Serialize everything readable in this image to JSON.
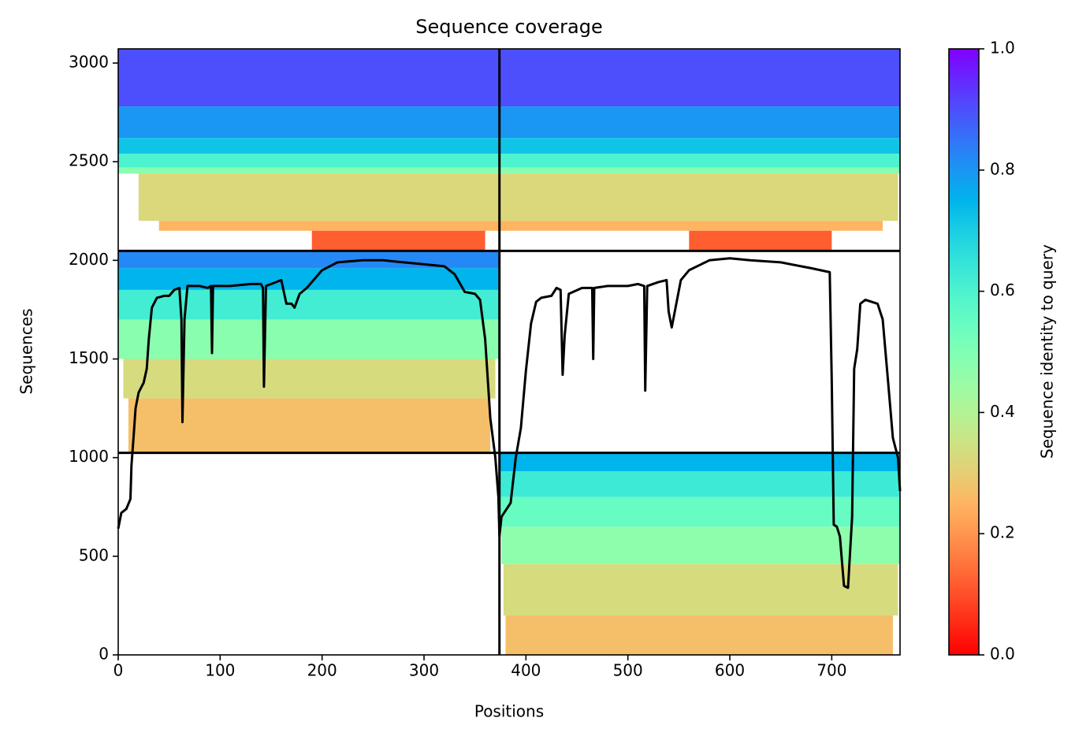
{
  "chart_data": {
    "type": "coverage",
    "title": "Sequence coverage",
    "xlabel": "Positions",
    "ylabel": "Sequences",
    "colorbar_label": "Sequence identity to query",
    "xlim": [
      0,
      767
    ],
    "ylim": [
      0,
      3072
    ],
    "xticks": [
      0,
      100,
      200,
      300,
      400,
      500,
      600,
      700
    ],
    "yticks": [
      0,
      500,
      1000,
      1500,
      2000,
      2500,
      3000
    ],
    "clim": [
      0,
      1
    ],
    "cticks": [
      {
        "value": 0,
        "label": "0.0"
      },
      0.2,
      0.4,
      0.6,
      0.8,
      {
        "value": 1,
        "label": "1.0"
      }
    ],
    "colormap": "rainbow_r",
    "boundaries": {
      "x": [
        374
      ],
      "y": [
        1024,
        2048
      ]
    },
    "blocks": [
      {
        "x": [
          0,
          767
        ],
        "y": [
          2780,
          3072
        ],
        "identity": 0.9
      },
      {
        "x": [
          0,
          767
        ],
        "y": [
          2620,
          2780
        ],
        "identity": 0.8
      },
      {
        "x": [
          0,
          767
        ],
        "y": [
          2540,
          2620
        ],
        "identity": 0.72
      },
      {
        "x": [
          0,
          767
        ],
        "y": [
          2470,
          2540
        ],
        "identity": 0.6
      },
      {
        "x": [
          0,
          767
        ],
        "y": [
          2440,
          2470
        ],
        "identity": 0.48
      },
      {
        "x": [
          20,
          765
        ],
        "y": [
          2200,
          2440
        ],
        "identity": 0.32
      },
      {
        "x": [
          40,
          750
        ],
        "y": [
          2150,
          2200
        ],
        "identity": 0.25
      },
      {
        "x": [
          190,
          360
        ],
        "y": [
          2048,
          2150
        ],
        "identity": 0.12
      },
      {
        "x": [
          560,
          700
        ],
        "y": [
          2048,
          2150
        ],
        "identity": 0.12
      },
      {
        "x": [
          0,
          374
        ],
        "y": [
          1960,
          2048
        ],
        "identity": 0.82
      },
      {
        "x": [
          0,
          374
        ],
        "y": [
          1850,
          1960
        ],
        "identity": 0.75
      },
      {
        "x": [
          0,
          374
        ],
        "y": [
          1700,
          1850
        ],
        "identity": 0.62
      },
      {
        "x": [
          0,
          374
        ],
        "y": [
          1500,
          1700
        ],
        "identity": 0.48
      },
      {
        "x": [
          5,
          370
        ],
        "y": [
          1300,
          1500
        ],
        "identity": 0.33
      },
      {
        "x": [
          10,
          365
        ],
        "y": [
          1024,
          1300
        ],
        "identity": 0.27
      },
      {
        "x": [
          374,
          767
        ],
        "y": [
          930,
          1024
        ],
        "identity": 0.75
      },
      {
        "x": [
          374,
          767
        ],
        "y": [
          800,
          930
        ],
        "identity": 0.63
      },
      {
        "x": [
          374,
          767
        ],
        "y": [
          650,
          800
        ],
        "identity": 0.55
      },
      {
        "x": [
          376,
          767
        ],
        "y": [
          460,
          650
        ],
        "identity": 0.47
      },
      {
        "x": [
          378,
          765
        ],
        "y": [
          200,
          460
        ],
        "identity": 0.33
      },
      {
        "x": [
          380,
          760
        ],
        "y": [
          0,
          200
        ],
        "identity": 0.27
      }
    ],
    "coverage": {
      "color": "#000000",
      "x": [
        0,
        3,
        8,
        12,
        13,
        15,
        17,
        20,
        25,
        28,
        30,
        33,
        38,
        45,
        50,
        55,
        60,
        62,
        63,
        65,
        68,
        80,
        88,
        91,
        92,
        93,
        110,
        130,
        140,
        142,
        143,
        145,
        155,
        160,
        165,
        170,
        173,
        178,
        185,
        190,
        200,
        215,
        240,
        260,
        280,
        300,
        320,
        330,
        340,
        350,
        355,
        360,
        365,
        370,
        373,
        374,
        376,
        385,
        390,
        395,
        400,
        405,
        410,
        415,
        425,
        430,
        434,
        436,
        438,
        442,
        455,
        465,
        466,
        467,
        480,
        500,
        510,
        516,
        517,
        519,
        530,
        538,
        540,
        543,
        546,
        552,
        560,
        580,
        600,
        620,
        650,
        680,
        698,
        700,
        702,
        705,
        708,
        712,
        716,
        720,
        722,
        725,
        728,
        733,
        745,
        750,
        755,
        760,
        765,
        767
      ],
      "values": [
        640,
        720,
        740,
        790,
        960,
        1100,
        1250,
        1330,
        1380,
        1450,
        1600,
        1760,
        1810,
        1820,
        1820,
        1850,
        1860,
        1700,
        1180,
        1700,
        1870,
        1870,
        1860,
        1870,
        1530,
        1870,
        1870,
        1880,
        1880,
        1860,
        1360,
        1870,
        1890,
        1900,
        1780,
        1780,
        1760,
        1830,
        1860,
        1890,
        1950,
        1990,
        2000,
        2000,
        1990,
        1980,
        1970,
        1930,
        1840,
        1830,
        1800,
        1600,
        1200,
        1000,
        800,
        600,
        700,
        770,
        1000,
        1150,
        1440,
        1680,
        1790,
        1810,
        1820,
        1860,
        1850,
        1420,
        1620,
        1830,
        1860,
        1860,
        1500,
        1860,
        1870,
        1870,
        1880,
        1870,
        1340,
        1870,
        1890,
        1900,
        1740,
        1660,
        1740,
        1900,
        1950,
        2000,
        2010,
        2000,
        1990,
        1960,
        1940,
        1400,
        660,
        650,
        600,
        350,
        340,
        700,
        1450,
        1550,
        1780,
        1800,
        1780,
        1700,
        1400,
        1100,
        1000,
        830
      ]
    }
  }
}
